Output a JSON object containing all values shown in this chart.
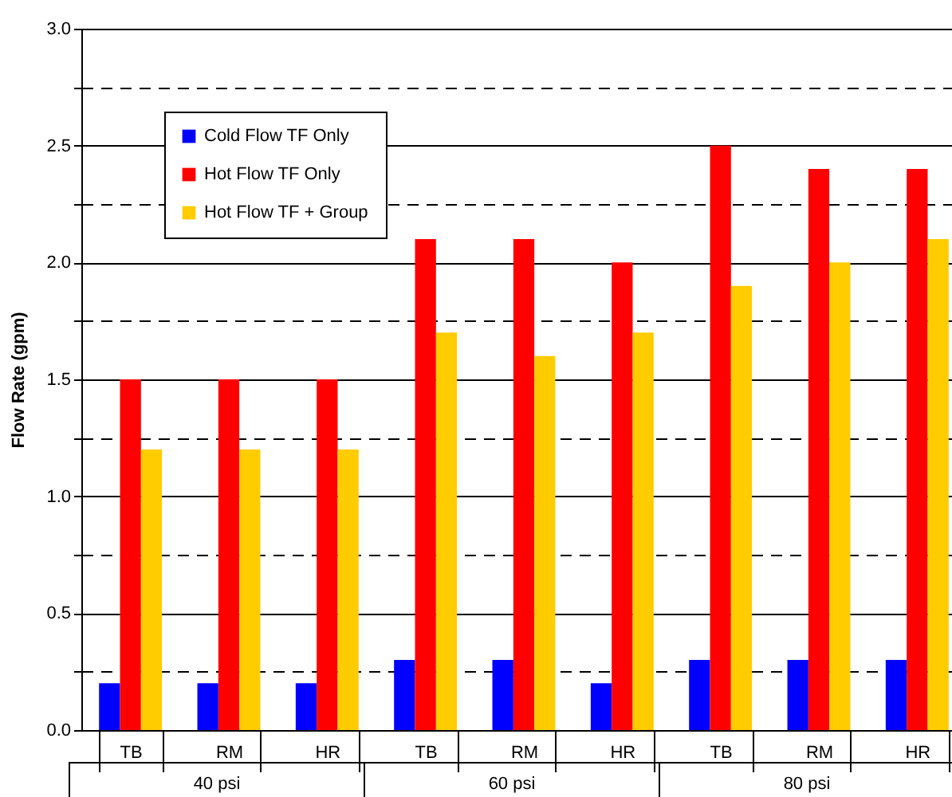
{
  "chart_data": {
    "type": "bar",
    "ylabel": "Flow Rate (gpm)",
    "categories": [
      "TB",
      "RM",
      "HR",
      "TB",
      "RM",
      "HR",
      "TB",
      "RM",
      "HR"
    ],
    "series": [
      {
        "name": "Cold Flow TF Only",
        "color": "#0000ff",
        "values": [
          0.2,
          0.2,
          0.2,
          0.3,
          0.3,
          0.2,
          0.3,
          0.3,
          0.3
        ]
      },
      {
        "name": "Hot Flow TF Only",
        "color": "#ff0000",
        "values": [
          1.5,
          1.5,
          1.5,
          2.1,
          2.1,
          2.0,
          2.5,
          2.4,
          2.4
        ]
      },
      {
        "name": "Hot Flow TF + Group",
        "color": "#ffcc00",
        "values": [
          1.2,
          1.2,
          1.2,
          1.7,
          1.6,
          1.7,
          1.9,
          2.0,
          2.1
        ]
      }
    ],
    "ylim": [
      0,
      3
    ],
    "yticks": [
      {
        "value": 0,
        "label": "0.0"
      },
      {
        "value": 0.25,
        "label": null
      },
      {
        "value": 0.5,
        "label": "0.5"
      },
      {
        "value": 0.75,
        "label": null
      },
      {
        "value": 1,
        "label": "1.0"
      },
      {
        "value": 1.25,
        "label": null
      },
      {
        "value": 1.5,
        "label": "1.5"
      },
      {
        "value": 1.75,
        "label": null
      },
      {
        "value": 2,
        "label": "2.0"
      },
      {
        "value": 2.25,
        "label": null
      },
      {
        "value": 2.5,
        "label": "2.5"
      },
      {
        "value": 2.75,
        "label": null
      },
      {
        "value": 3,
        "label": "3.0"
      }
    ],
    "grid": true,
    "legend": "top left",
    "annotations": [
      "40 psi",
      "60 psi",
      "80 psi"
    ]
  }
}
